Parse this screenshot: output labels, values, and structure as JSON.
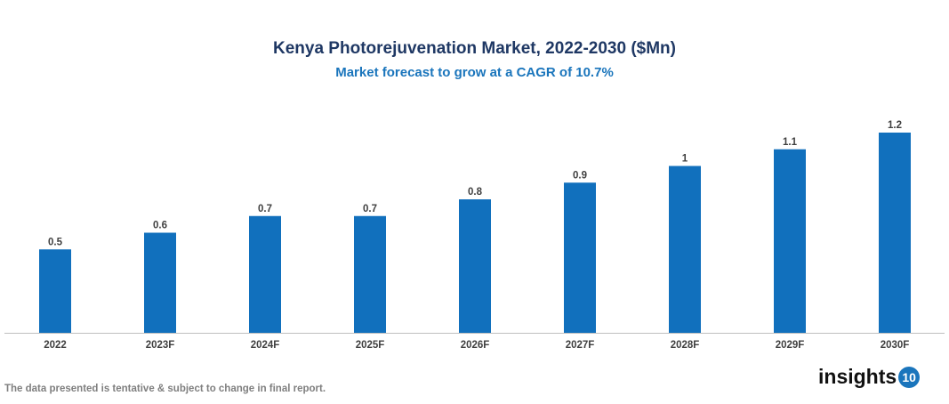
{
  "chart_data": {
    "type": "bar",
    "title": "Kenya Photorejuvenation Market, 2022-2030 ($Mn)",
    "subtitle": "Market forecast to grow at a CAGR of 10.7%",
    "categories": [
      "2022",
      "2023F",
      "2024F",
      "2025F",
      "2026F",
      "2027F",
      "2028F",
      "2029F",
      "2030F"
    ],
    "values": [
      0.5,
      0.6,
      0.7,
      0.7,
      0.8,
      0.9,
      1,
      1.1,
      1.2
    ],
    "xlabel": "",
    "ylabel": "",
    "ylim": [
      0,
      1.2
    ],
    "grid": false,
    "bar_color": "#1170bd"
  },
  "footnote": "The data presented is tentative & subject to change in final report.",
  "logo": {
    "text": "insights",
    "badge": "10"
  }
}
